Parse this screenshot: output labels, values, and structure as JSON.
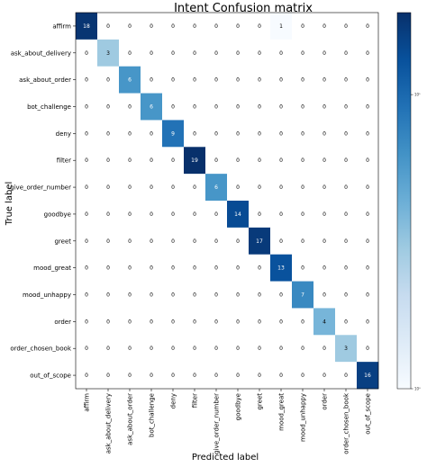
{
  "chart_data": {
    "type": "heatmap",
    "title": "Intent Confusion matrix",
    "xlabel": "Predicted label",
    "ylabel": "True label",
    "labels": [
      "affirm",
      "ask_about_delivery",
      "ask_about_order",
      "bot_challenge",
      "deny",
      "filter",
      "give_order_number",
      "goodbye",
      "greet",
      "mood_great",
      "mood_unhappy",
      "order",
      "order_chosen_book",
      "out_of_scope"
    ],
    "matrix": [
      [
        18,
        0,
        0,
        0,
        0,
        0,
        0,
        0,
        0,
        1,
        0,
        0,
        0,
        0
      ],
      [
        0,
        3,
        0,
        0,
        0,
        0,
        0,
        0,
        0,
        0,
        0,
        0,
        0,
        0
      ],
      [
        0,
        0,
        6,
        0,
        0,
        0,
        0,
        0,
        0,
        0,
        0,
        0,
        0,
        0
      ],
      [
        0,
        0,
        0,
        6,
        0,
        0,
        0,
        0,
        0,
        0,
        0,
        0,
        0,
        0
      ],
      [
        0,
        0,
        0,
        0,
        9,
        0,
        0,
        0,
        0,
        0,
        0,
        0,
        0,
        0
      ],
      [
        0,
        0,
        0,
        0,
        0,
        19,
        0,
        0,
        0,
        0,
        0,
        0,
        0,
        0
      ],
      [
        0,
        0,
        0,
        0,
        0,
        0,
        6,
        0,
        0,
        0,
        0,
        0,
        0,
        0
      ],
      [
        0,
        0,
        0,
        0,
        0,
        0,
        0,
        14,
        0,
        0,
        0,
        0,
        0,
        0
      ],
      [
        0,
        0,
        0,
        0,
        0,
        0,
        0,
        0,
        17,
        0,
        0,
        0,
        0,
        0
      ],
      [
        0,
        0,
        0,
        0,
        0,
        0,
        0,
        0,
        0,
        13,
        0,
        0,
        0,
        0
      ],
      [
        0,
        0,
        0,
        0,
        0,
        0,
        0,
        0,
        0,
        0,
        7,
        0,
        0,
        0
      ],
      [
        0,
        0,
        0,
        0,
        0,
        0,
        0,
        0,
        0,
        0,
        0,
        4,
        0,
        0
      ],
      [
        0,
        0,
        0,
        0,
        0,
        0,
        0,
        0,
        0,
        0,
        0,
        0,
        3,
        0
      ],
      [
        0,
        0,
        0,
        0,
        0,
        0,
        0,
        0,
        0,
        0,
        0,
        0,
        0,
        16
      ]
    ],
    "colormap": "Blues",
    "color_scale": "log",
    "colorbar_ticks": [
      {
        "value": 1,
        "label": "10⁰"
      },
      {
        "value": 10,
        "label": "10¹"
      }
    ],
    "vmin": 1,
    "vmax": 19,
    "colors": {
      "low": "#f7fbff",
      "high": "#08306b",
      "grid_border": "#000000"
    }
  }
}
